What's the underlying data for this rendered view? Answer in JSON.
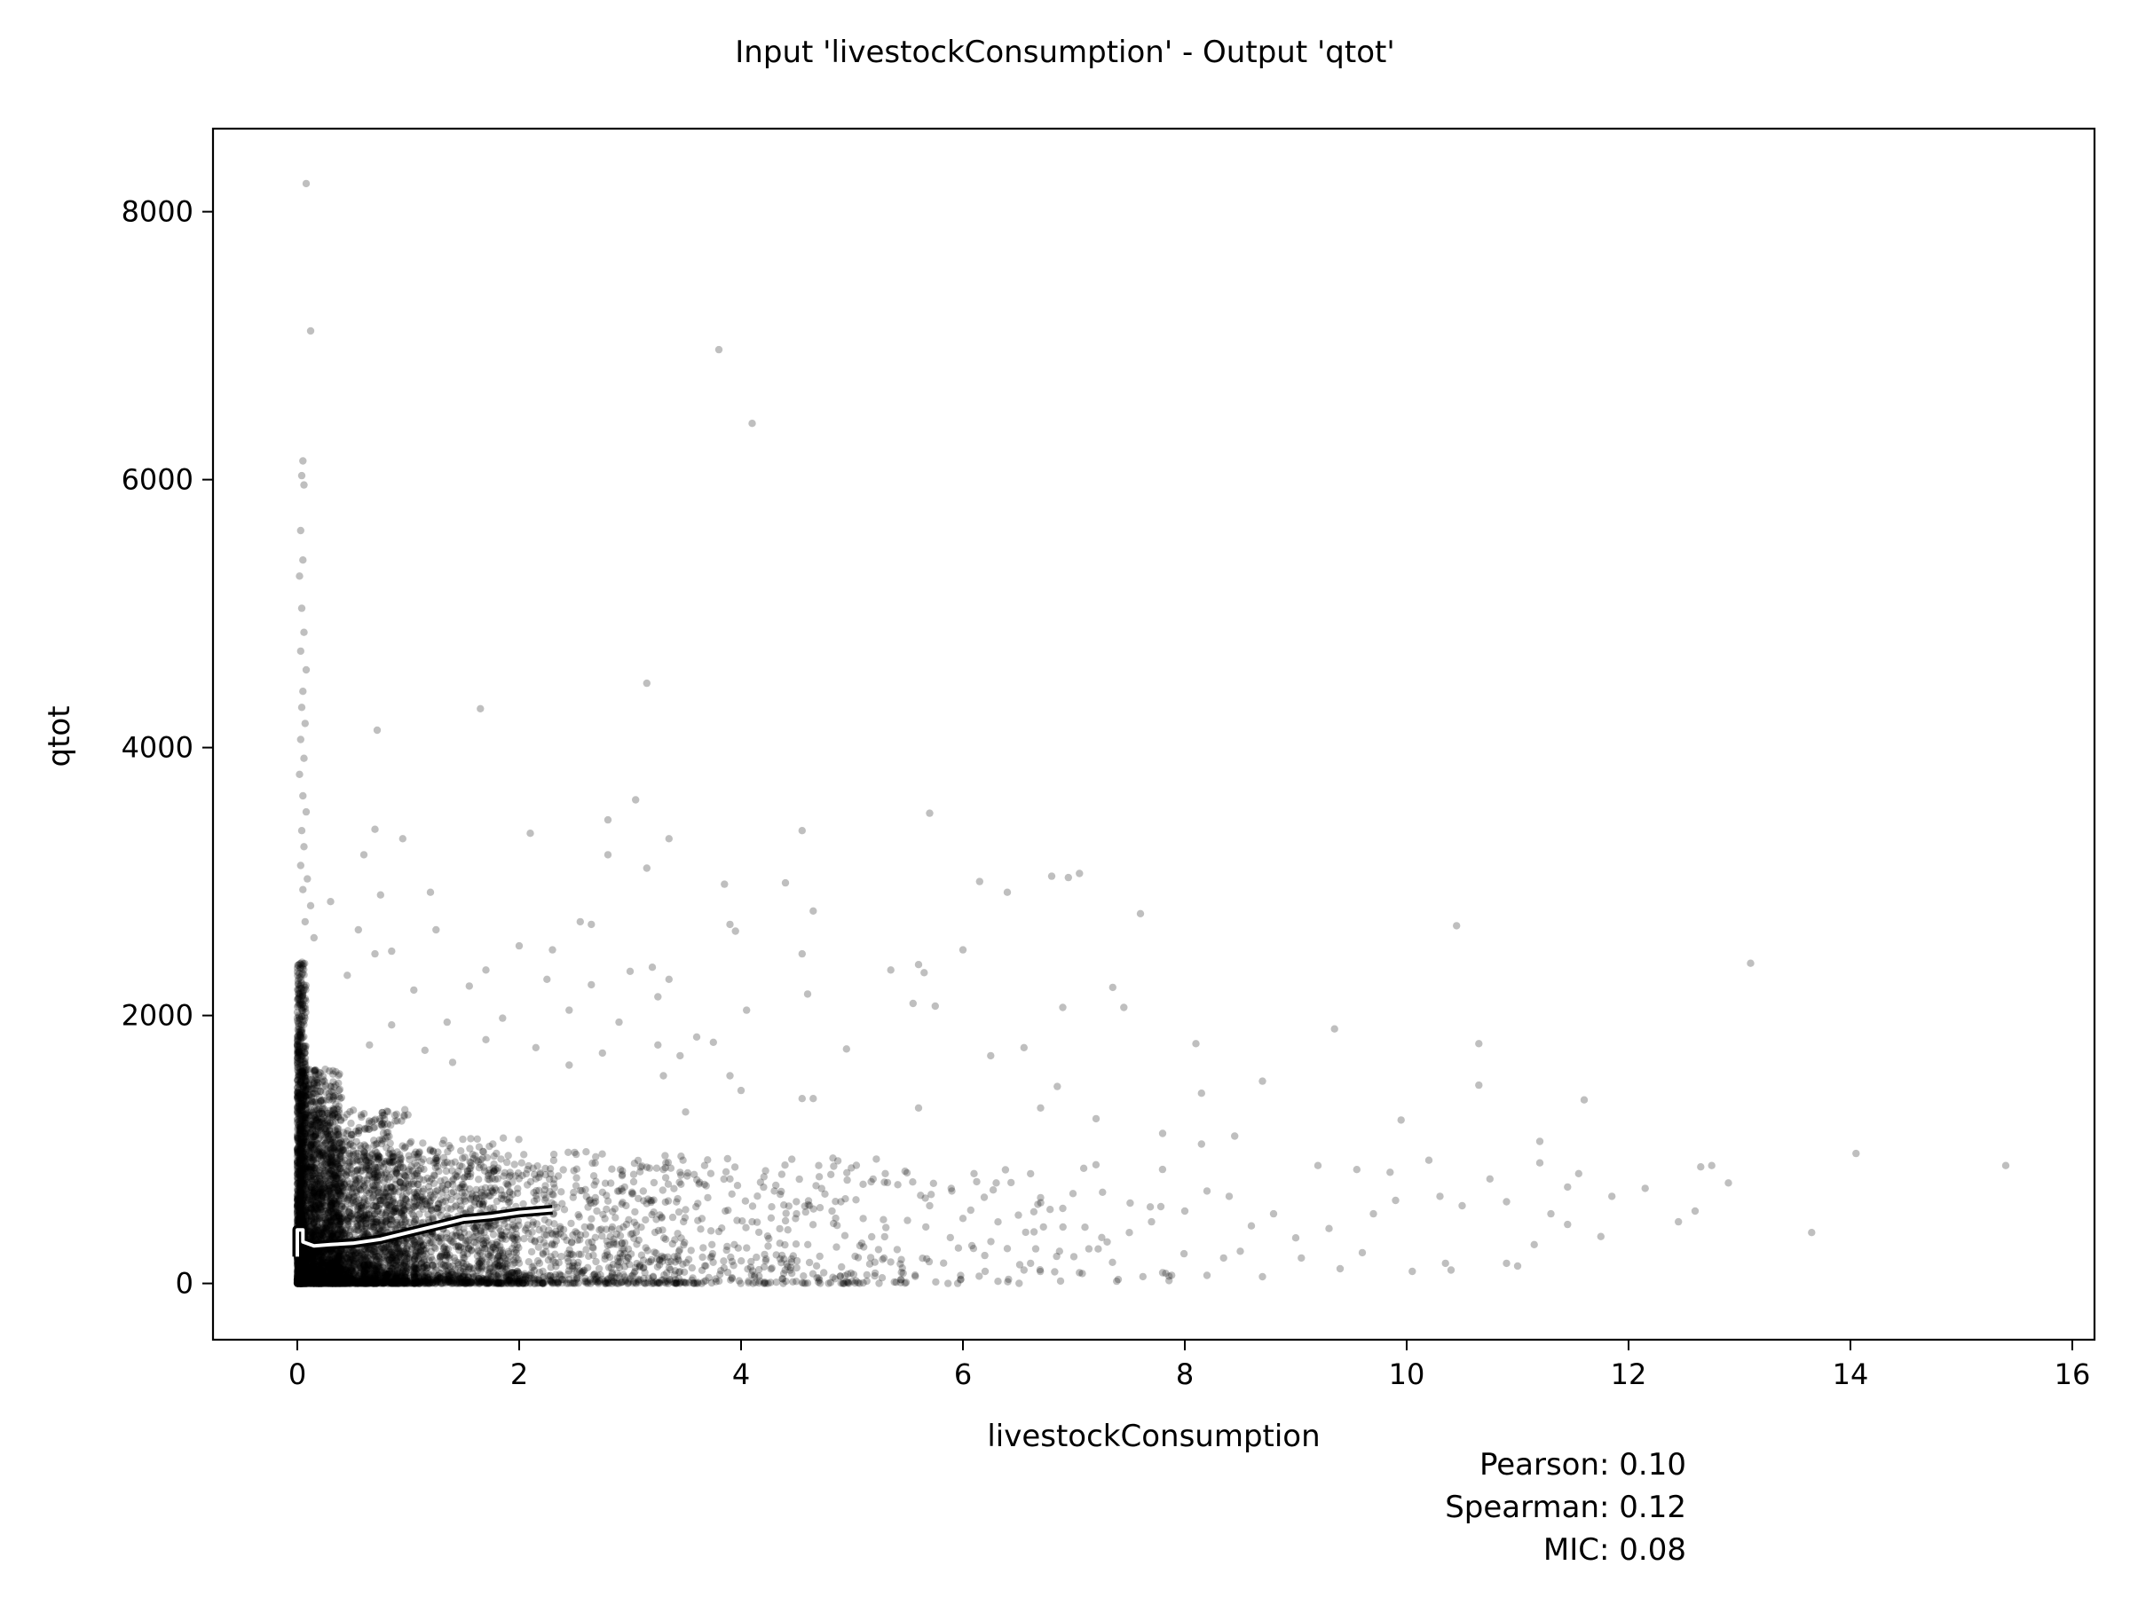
{
  "chart_data": {
    "type": "scatter",
    "title": "Input 'livestockConsumption' - Output 'qtot'",
    "xlabel": "livestockConsumption",
    "ylabel": "qtot",
    "xlim": [
      -0.76,
      16.2
    ],
    "ylim": [
      -420,
      8620
    ],
    "x_ticks": [
      0,
      2,
      4,
      6,
      8,
      10,
      12,
      14,
      16
    ],
    "y_ticks": [
      0,
      2000,
      4000,
      6000,
      8000
    ],
    "grid": false,
    "legend": "none",
    "point_color": "#000000",
    "point_alpha": 0.25,
    "trend_color_inner": "#000000",
    "trend_color_outline": "#ffffff",
    "stats": [
      {
        "label": "Pearson:",
        "value": "0.10"
      },
      {
        "label": "Spearman:",
        "value": "0.12"
      },
      {
        "label": "MIC:",
        "value": "0.08"
      }
    ],
    "points": [
      [
        0.08,
        8210
      ],
      [
        0.12,
        7110
      ],
      [
        3.8,
        6970
      ],
      [
        4.1,
        6420
      ],
      [
        0.05,
        6140
      ],
      [
        0.04,
        6030
      ],
      [
        0.06,
        5960
      ],
      [
        0.03,
        5620
      ],
      [
        0.05,
        5400
      ],
      [
        0.02,
        5280
      ],
      [
        0.04,
        5040
      ],
      [
        0.06,
        4860
      ],
      [
        0.03,
        4720
      ],
      [
        0.08,
        4580
      ],
      [
        0.05,
        4420
      ],
      [
        0.04,
        4300
      ],
      [
        0.07,
        4180
      ],
      [
        0.03,
        4060
      ],
      [
        0.06,
        3920
      ],
      [
        0.02,
        3800
      ],
      [
        0.05,
        3640
      ],
      [
        0.08,
        3520
      ],
      [
        0.04,
        3380
      ],
      [
        0.06,
        3260
      ],
      [
        0.03,
        3120
      ],
      [
        0.09,
        3020
      ],
      [
        0.05,
        2940
      ],
      [
        0.12,
        2820
      ],
      [
        0.07,
        2700
      ],
      [
        0.15,
        2580
      ],
      [
        3.15,
        4480
      ],
      [
        1.65,
        4290
      ],
      [
        0.72,
        4130
      ],
      [
        3.05,
        3610
      ],
      [
        5.7,
        3510
      ],
      [
        2.8,
        3460
      ],
      [
        0.7,
        3390
      ],
      [
        2.1,
        3360
      ],
      [
        3.35,
        3320
      ],
      [
        0.95,
        3320
      ],
      [
        4.55,
        3380
      ],
      [
        0.6,
        3200
      ],
      [
        2.8,
        3200
      ],
      [
        3.15,
        3100
      ],
      [
        6.8,
        3040
      ],
      [
        7.05,
        3060
      ],
      [
        6.95,
        3030
      ],
      [
        3.85,
        2980
      ],
      [
        4.4,
        2990
      ],
      [
        6.15,
        3000
      ],
      [
        6.4,
        2920
      ],
      [
        1.2,
        2920
      ],
      [
        0.75,
        2900
      ],
      [
        0.3,
        2850
      ],
      [
        4.65,
        2780
      ],
      [
        7.6,
        2760
      ],
      [
        2.55,
        2700
      ],
      [
        2.65,
        2680
      ],
      [
        3.9,
        2680
      ],
      [
        10.45,
        2670
      ],
      [
        1.25,
        2640
      ],
      [
        3.95,
        2630
      ],
      [
        0.55,
        2640
      ],
      [
        6.0,
        2490
      ],
      [
        2.0,
        2520
      ],
      [
        2.3,
        2490
      ],
      [
        0.7,
        2460
      ],
      [
        0.85,
        2480
      ],
      [
        4.55,
        2460
      ],
      [
        13.1,
        2390
      ],
      [
        3.0,
        2330
      ],
      [
        5.35,
        2340
      ],
      [
        5.6,
        2380
      ],
      [
        5.65,
        2320
      ],
      [
        3.2,
        2360
      ],
      [
        1.7,
        2340
      ],
      [
        0.45,
        2300
      ],
      [
        3.35,
        2270
      ],
      [
        7.35,
        2210
      ],
      [
        4.6,
        2160
      ],
      [
        3.25,
        2140
      ],
      [
        1.05,
        2190
      ],
      [
        1.55,
        2220
      ],
      [
        2.25,
        2270
      ],
      [
        2.65,
        2230
      ],
      [
        5.55,
        2090
      ],
      [
        5.75,
        2070
      ],
      [
        7.45,
        2060
      ],
      [
        6.9,
        2060
      ],
      [
        4.05,
        2040
      ],
      [
        2.45,
        2040
      ],
      [
        1.85,
        1980
      ],
      [
        2.9,
        1950
      ],
      [
        1.35,
        1950
      ],
      [
        0.85,
        1930
      ],
      [
        9.35,
        1900
      ],
      [
        3.6,
        1840
      ],
      [
        3.75,
        1800
      ],
      [
        8.1,
        1790
      ],
      [
        10.65,
        1790
      ],
      [
        1.7,
        1820
      ],
      [
        3.25,
        1780
      ],
      [
        0.65,
        1780
      ],
      [
        1.15,
        1740
      ],
      [
        4.95,
        1750
      ],
      [
        6.55,
        1760
      ],
      [
        2.15,
        1760
      ],
      [
        2.75,
        1720
      ],
      [
        3.45,
        1700
      ],
      [
        6.25,
        1700
      ],
      [
        1.4,
        1650
      ],
      [
        2.45,
        1630
      ],
      [
        3.9,
        1550
      ],
      [
        3.3,
        1550
      ],
      [
        10.65,
        1480
      ],
      [
        6.85,
        1470
      ],
      [
        8.7,
        1510
      ],
      [
        8.15,
        1420
      ],
      [
        4.0,
        1440
      ],
      [
        11.6,
        1370
      ],
      [
        4.55,
        1380
      ],
      [
        4.65,
        1380
      ],
      [
        5.6,
        1310
      ],
      [
        3.5,
        1280
      ],
      [
        7.2,
        1230
      ],
      [
        9.95,
        1220
      ],
      [
        6.7,
        1310
      ],
      [
        7.8,
        1120
      ],
      [
        8.45,
        1100
      ],
      [
        11.2,
        1060
      ],
      [
        8.15,
        1040
      ],
      [
        12.65,
        870
      ],
      [
        15.4,
        880
      ],
      [
        14.05,
        970
      ],
      [
        12.75,
        880
      ],
      [
        12.9,
        750
      ],
      [
        13.65,
        380
      ],
      [
        12.15,
        710
      ],
      [
        11.85,
        650
      ],
      [
        12.45,
        460
      ],
      [
        12.6,
        540
      ],
      [
        11.75,
        350
      ],
      [
        11.45,
        440
      ],
      [
        11.3,
        520
      ],
      [
        11.15,
        290
      ],
      [
        11.0,
        130
      ],
      [
        10.35,
        150
      ],
      [
        10.5,
        580
      ],
      [
        10.9,
        150
      ],
      [
        10.05,
        90
      ],
      [
        10.4,
        100
      ],
      [
        9.6,
        230
      ],
      [
        9.4,
        110
      ],
      [
        9.05,
        190
      ],
      [
        8.7,
        50
      ],
      [
        8.5,
        240
      ],
      [
        8.35,
        190
      ],
      [
        8.2,
        60
      ],
      [
        7.8,
        80
      ],
      [
        7.4,
        30
      ],
      [
        7.05,
        80
      ],
      [
        7.0,
        200
      ],
      [
        6.55,
        100
      ],
      [
        6.2,
        90
      ],
      [
        6.4,
        260
      ],
      [
        9.2,
        880
      ],
      [
        9.55,
        850
      ],
      [
        9.85,
        830
      ],
      [
        10.2,
        920
      ],
      [
        10.75,
        780
      ],
      [
        11.2,
        900
      ],
      [
        11.45,
        720
      ],
      [
        11.55,
        820
      ],
      [
        10.9,
        610
      ],
      [
        10.3,
        650
      ],
      [
        9.9,
        620
      ],
      [
        9.7,
        520
      ],
      [
        9.3,
        410
      ],
      [
        9.0,
        340
      ],
      [
        8.8,
        520
      ],
      [
        8.6,
        430
      ],
      [
        8.4,
        650
      ],
      [
        8.2,
        690
      ],
      [
        8.0,
        540
      ],
      [
        7.7,
        460
      ],
      [
        7.5,
        380
      ],
      [
        7.3,
        310
      ],
      [
        7.1,
        420
      ],
      [
        6.9,
        560
      ],
      [
        6.7,
        640
      ],
      [
        6.5,
        510
      ],
      [
        6.3,
        750
      ],
      [
        6.1,
        820
      ],
      [
        5.9,
        690
      ],
      [
        5.7,
        580
      ],
      [
        5.5,
        470
      ],
      [
        5.3,
        820
      ],
      [
        5.1,
        740
      ],
      [
        4.9,
        610
      ],
      [
        4.7,
        880
      ],
      [
        4.5,
        520
      ],
      [
        4.3,
        690
      ],
      [
        4.1,
        460
      ],
      [
        3.9,
        780
      ],
      [
        3.7,
        640
      ],
      [
        3.5,
        550
      ],
      [
        3.3,
        850
      ],
      [
        3.1,
        420
      ],
      [
        2.9,
        690
      ],
      [
        2.7,
        540
      ]
    ],
    "density": [
      {
        "x_max": 0.08,
        "y_max": 2400,
        "n": 1100
      },
      {
        "x_max": 0.4,
        "y_max": 1600,
        "n": 1600
      },
      {
        "x_max": 1.0,
        "y_max": 1300,
        "n": 1500
      },
      {
        "x_max": 2.0,
        "y_max": 1100,
        "n": 1200
      },
      {
        "x_max": 3.5,
        "y_max": 1000,
        "n": 900
      },
      {
        "x_max": 5.5,
        "y_max": 950,
        "n": 650
      },
      {
        "x_max": 8.0,
        "y_max": 900,
        "n": 280
      }
    ],
    "trend": [
      [
        0.0,
        200
      ],
      [
        0.0,
        400
      ],
      [
        0.05,
        400
      ],
      [
        0.05,
        310
      ],
      [
        0.15,
        280
      ],
      [
        0.3,
        290
      ],
      [
        0.5,
        300
      ],
      [
        0.75,
        330
      ],
      [
        1.0,
        380
      ],
      [
        1.25,
        430
      ],
      [
        1.5,
        480
      ],
      [
        1.75,
        500
      ],
      [
        2.0,
        530
      ],
      [
        2.3,
        550
      ]
    ]
  }
}
